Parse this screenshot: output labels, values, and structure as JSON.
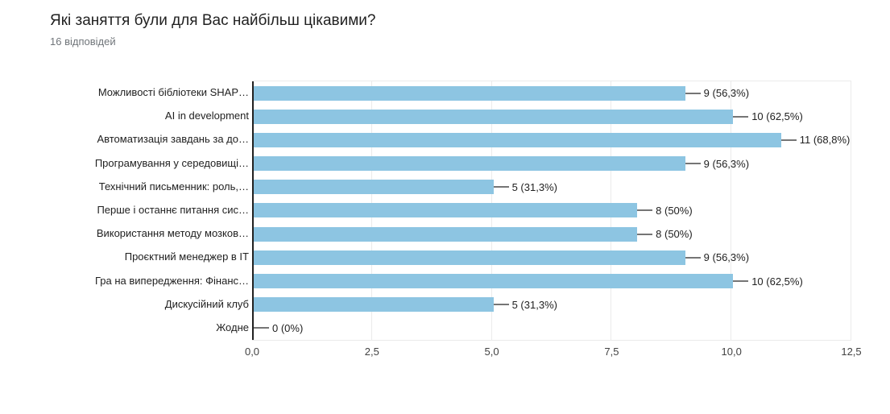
{
  "header": {
    "title": "Які заняття були для Вас найбільш цікавими?",
    "subtitle": "16 відповідей"
  },
  "colors": {
    "bar": "#8dc5e2",
    "axis_line": "#212121",
    "gridline": "#ebebeb",
    "leader_line": "#757575",
    "value_text": "#212121",
    "category_text": "#212121",
    "tick_text": "#424242",
    "title_text": "#212121",
    "subtitle_text": "#70757a",
    "background": "#ffffff"
  },
  "chart_data": {
    "type": "bar",
    "orientation": "horizontal",
    "title": "Які заняття були для Вас найбільш цікавими?",
    "subtitle": "16 відповідей",
    "categories": [
      "Можливості бібліотеки SHAP…",
      "AI in development",
      "Автоматизація завдань за до…",
      "Програмування у середовищі…",
      "Технічний письменник: роль,…",
      "Перше і останнє питання сис…",
      "Використання методу мозков…",
      "Проєктний менеджер в IT",
      "Гра на випередження: Фінанс…",
      "Дискусійний клуб",
      "Жодне"
    ],
    "values": [
      9,
      10,
      11,
      9,
      5,
      8,
      8,
      9,
      10,
      5,
      0
    ],
    "value_labels": [
      "9 (56,3%)",
      "10 (62,5%)",
      "11 (68,8%)",
      "9 (56,3%)",
      "5 (31,3%)",
      "8 (50%)",
      "8 (50%)",
      "9 (56,3%)",
      "10 (62,5%)",
      "5 (31,3%)",
      "0 (0%)"
    ],
    "xlabel": "",
    "ylabel": "",
    "xlim": [
      0,
      12.5
    ],
    "xticks": [
      0,
      2.5,
      5,
      7.5,
      10,
      12.5
    ],
    "xtick_labels": [
      "0,0",
      "2,5",
      "5,0",
      "7,5",
      "10,0",
      "12,5"
    ],
    "grid": true,
    "legend": "none",
    "bar_color": "#8dc5e2"
  }
}
